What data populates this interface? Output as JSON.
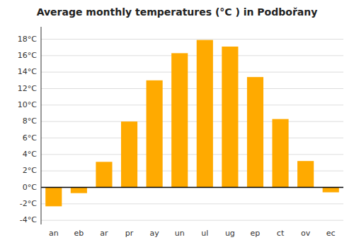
{
  "chart_data": {
    "type": "bar",
    "title": "Average monthly temperatures (°C ) in Podbořany",
    "categories": [
      "an",
      "eb",
      "ar",
      "pr",
      "ay",
      "un",
      "ul",
      "ug",
      "ep",
      "ct",
      "ov",
      "ec"
    ],
    "values": [
      -2.3,
      -0.7,
      3.1,
      8.0,
      13.0,
      16.3,
      17.9,
      17.1,
      13.4,
      8.3,
      3.2,
      -0.6
    ],
    "color": "#FFAA00",
    "ylim": [
      -4.5,
      19.5
    ],
    "yticks": [
      {
        "value": -4,
        "label": "-4°C"
      },
      {
        "value": -2,
        "label": "-2°C"
      },
      {
        "value": 0,
        "label": "0°C"
      },
      {
        "value": 2,
        "label": "2°C"
      },
      {
        "value": 4,
        "label": "4°C"
      },
      {
        "value": 6,
        "label": "6°C"
      },
      {
        "value": 8,
        "label": "8°C"
      },
      {
        "value": 10,
        "label": "10°C"
      },
      {
        "value": 12,
        "label": "12°C"
      },
      {
        "value": 14,
        "label": "14°C"
      },
      {
        "value": 16,
        "label": "16°C"
      },
      {
        "value": 18,
        "label": "18°C"
      }
    ],
    "grid": true
  }
}
